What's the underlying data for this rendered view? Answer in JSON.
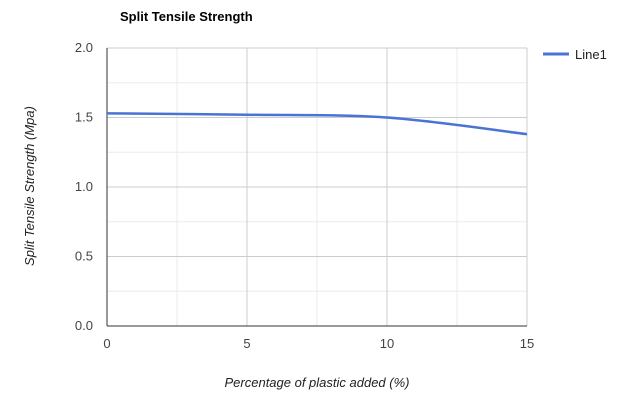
{
  "chart_data": {
    "type": "line",
    "title": "Split Tensile Strength",
    "xlabel": "Percentage of plastic added (%)",
    "ylabel": "Split Tensile Strength (Mpa)",
    "x": [
      0,
      5,
      10,
      15
    ],
    "series": [
      {
        "name": "Line1",
        "values": [
          1.53,
          1.52,
          1.5,
          1.38
        ],
        "color": "#4a73d6"
      }
    ],
    "xlim": [
      0,
      15
    ],
    "ylim": [
      0,
      2
    ],
    "xticks": [
      "0",
      "5",
      "10",
      "15"
    ],
    "yticks": [
      "0.0",
      "0.5",
      "1.0",
      "1.5",
      "2.0"
    ],
    "grid": true,
    "legend": "right",
    "colors": {
      "grid_major": "#cccccc",
      "grid_minor": "#ebebeb",
      "axis": "#333333"
    }
  }
}
